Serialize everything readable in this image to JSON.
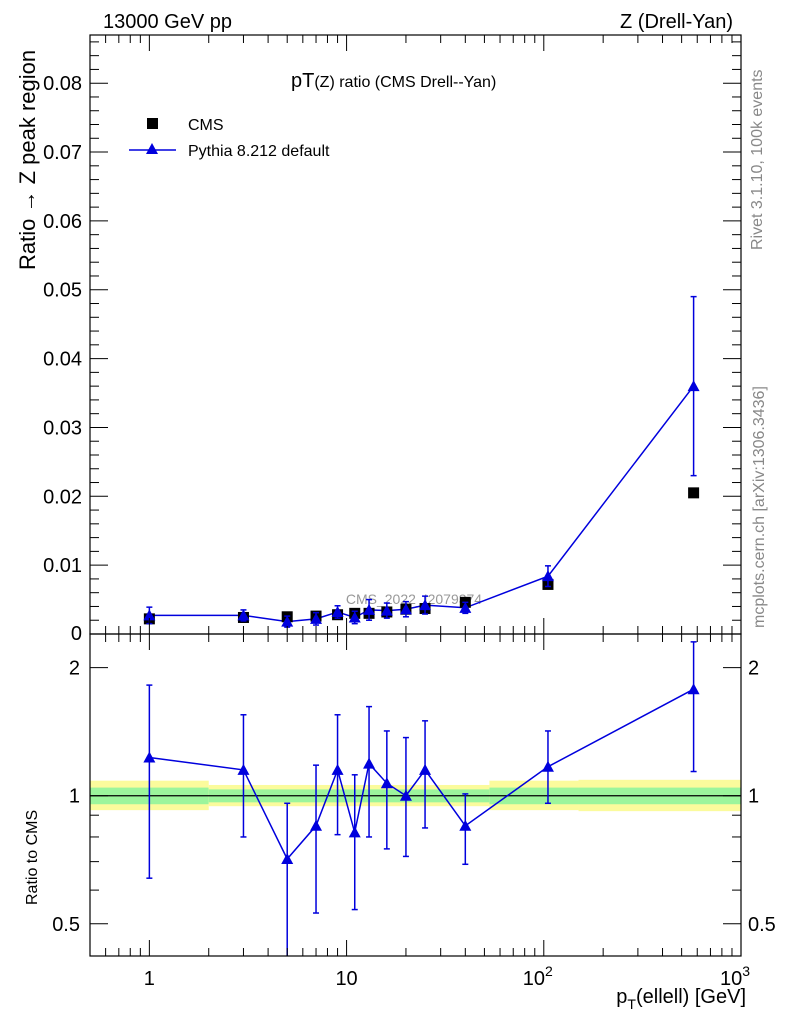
{
  "header": {
    "left": "13000 GeV pp",
    "right": "Z (Drell-Yan)"
  },
  "side": {
    "rivet": "Rivet 3.1.10,  100k events",
    "mcplots": "mcplots.cern.ch [arXiv:1306.3436]"
  },
  "chart_data": [
    {
      "type": "scatter",
      "panel": "main",
      "title_prefix": "pT",
      "title_suffix": "(Z) ratio (CMS Drell--Yan)",
      "ylabel": "Ratio → Z peak region",
      "xscale": "log",
      "xlim": [
        0.5,
        1000
      ],
      "ylim": [
        0,
        0.087
      ],
      "yticks": [
        0.01,
        0.02,
        0.03,
        0.04,
        0.05,
        0.06,
        0.07,
        0.08
      ],
      "ytick_labels": [
        "0.01",
        "0.02",
        "0.03",
        "0.04",
        "0.05",
        "0.06",
        "0.07",
        "0.08"
      ],
      "y_zero_label": "0",
      "watermark": "CMS_2022_I2079374",
      "legend_position": "top-left",
      "series": [
        {
          "name": "CMS",
          "marker": "square",
          "color": "#000000",
          "x": [
            1,
            3,
            5,
            7,
            9,
            11,
            13,
            16,
            20,
            25,
            40,
            105,
            575
          ],
          "y": [
            0.0022,
            0.0024,
            0.0025,
            0.0026,
            0.0028,
            0.003,
            0.003,
            0.0032,
            0.0036,
            0.0037,
            0.0046,
            0.0072,
            0.0205
          ]
        },
        {
          "name": "Pythia 8.212 default",
          "marker": "triangle",
          "color": "#0000dd",
          "x": [
            1,
            3,
            5,
            7,
            9,
            11,
            13,
            16,
            20,
            25,
            40,
            105,
            575
          ],
          "y": [
            0.0027,
            0.0027,
            0.0018,
            0.0022,
            0.0032,
            0.0024,
            0.0035,
            0.0034,
            0.0036,
            0.0042,
            0.0038,
            0.0084,
            0.036
          ],
          "err": [
            0.0012,
            0.0008,
            0.0008,
            0.0009,
            0.0009,
            0.0009,
            0.0015,
            0.0011,
            0.0011,
            0.0013,
            0.0008,
            0.0015,
            0.013
          ]
        }
      ]
    },
    {
      "type": "scatter",
      "panel": "ratio",
      "ylabel": "Ratio to CMS",
      "xlabel": "p_T(ellell) [GeV]",
      "xlabel_main": "p",
      "xlabel_sub": "T",
      "xlabel_rest": "(ellell) [GeV]",
      "xscale": "log",
      "xlim": [
        0.5,
        1000
      ],
      "xtick_labels": [
        {
          "x": 1,
          "base": "1",
          "exp": ""
        },
        {
          "x": 10,
          "base": "10",
          "exp": ""
        },
        {
          "x": 100,
          "base": "10",
          "exp": "2"
        },
        {
          "x": 1000,
          "base": "10",
          "exp": "3"
        }
      ],
      "yscale": "log",
      "ylim": [
        0.42,
        2.4
      ],
      "yticks": [
        0.5,
        1,
        2
      ],
      "ytick_labels": [
        "0.5",
        "1",
        "2"
      ],
      "bands": [
        {
          "x0": 0.5,
          "x1": 2,
          "inner": [
            0.955,
            1.045
          ],
          "outer": [
            0.925,
            1.085
          ]
        },
        {
          "x0": 2,
          "x1": 53,
          "inner": [
            0.965,
            1.035
          ],
          "outer": [
            0.945,
            1.06
          ]
        },
        {
          "x0": 53,
          "x1": 150,
          "inner": [
            0.955,
            1.045
          ],
          "outer": [
            0.925,
            1.085
          ]
        },
        {
          "x0": 150,
          "x1": 1000,
          "inner": [
            0.955,
            1.045
          ],
          "outer": [
            0.92,
            1.09
          ]
        }
      ],
      "series": [
        {
          "name": "Pythia 8.212 default / CMS",
          "marker": "triangle",
          "color": "#0000dd",
          "x": [
            1,
            3,
            5,
            7,
            9,
            11,
            13,
            16,
            20,
            25,
            40,
            105,
            575
          ],
          "y": [
            1.23,
            1.15,
            0.71,
            0.85,
            1.15,
            0.82,
            1.19,
            1.07,
            1.0,
            1.15,
            0.85,
            1.17,
            1.78
          ],
          "lo": [
            0.64,
            0.8,
            0.42,
            0.53,
            0.81,
            0.54,
            0.8,
            0.75,
            0.72,
            0.84,
            0.69,
            0.96,
            1.14
          ],
          "hi": [
            1.82,
            1.55,
            0.96,
            1.18,
            1.55,
            1.12,
            1.62,
            1.42,
            1.37,
            1.5,
            1.01,
            1.42,
            2.3
          ]
        }
      ]
    }
  ]
}
